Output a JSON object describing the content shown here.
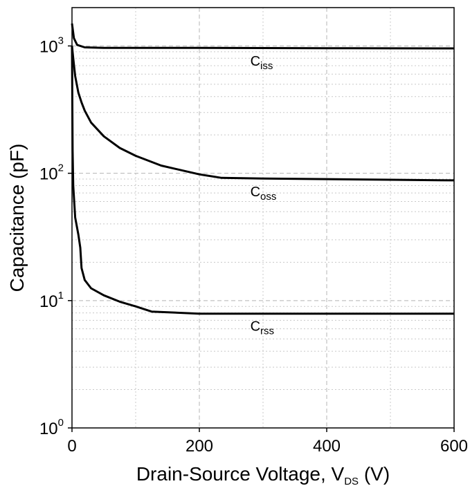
{
  "chart_data": {
    "type": "line",
    "xlabel": {
      "main": "Drain-Source Voltage, V",
      "sub": "DS",
      "unit": " (V)"
    },
    "ylabel": "Capacitance (pF)",
    "x_range": [
      0,
      600
    ],
    "y_range": [
      1,
      2000
    ],
    "y_scale": "log",
    "grid": true,
    "x_ticks": [
      {
        "value": 0,
        "label": "0"
      },
      {
        "value": 200,
        "label": "200"
      },
      {
        "value": 400,
        "label": "400"
      },
      {
        "value": 600,
        "label": "600"
      }
    ],
    "y_ticks": [
      {
        "value": 1,
        "base": "10",
        "exp": "0"
      },
      {
        "value": 10,
        "base": "10",
        "exp": "1"
      },
      {
        "value": 100,
        "base": "10",
        "exp": "2"
      },
      {
        "value": 1000,
        "base": "10",
        "exp": "3"
      }
    ],
    "series": [
      {
        "label": {
          "main": "C",
          "sub": "iss",
          "x": 280,
          "y": 700
        },
        "points": [
          [
            0,
            1500
          ],
          [
            3,
            1150
          ],
          [
            8,
            1020
          ],
          [
            20,
            975
          ],
          [
            50,
            965
          ],
          [
            100,
            965
          ],
          [
            200,
            965
          ],
          [
            300,
            962
          ],
          [
            400,
            960
          ],
          [
            500,
            958
          ],
          [
            600,
            957
          ]
        ]
      },
      {
        "label": {
          "main": "C",
          "sub": "oss",
          "x": 280,
          "y": 66
        },
        "points": [
          [
            0,
            1000
          ],
          [
            2,
            800
          ],
          [
            5,
            580
          ],
          [
            10,
            430
          ],
          [
            15,
            360
          ],
          [
            20,
            310
          ],
          [
            30,
            250
          ],
          [
            50,
            195
          ],
          [
            75,
            158
          ],
          [
            100,
            137
          ],
          [
            140,
            115
          ],
          [
            200,
            98
          ],
          [
            235,
            92
          ],
          [
            300,
            91
          ],
          [
            400,
            90
          ],
          [
            500,
            89
          ],
          [
            600,
            88
          ]
        ]
      },
      {
        "label": {
          "main": "C",
          "sub": "rss",
          "x": 280,
          "y": 5.8
        },
        "points": [
          [
            0,
            1000
          ],
          [
            1,
            150
          ],
          [
            2,
            80
          ],
          [
            5,
            45
          ],
          [
            10,
            33
          ],
          [
            13,
            26
          ],
          [
            15,
            18
          ],
          [
            20,
            14.5
          ],
          [
            30,
            12.5
          ],
          [
            50,
            11
          ],
          [
            75,
            9.8
          ],
          [
            100,
            9
          ],
          [
            125,
            8.2
          ],
          [
            200,
            7.9
          ],
          [
            300,
            7.9
          ],
          [
            400,
            7.9
          ],
          [
            500,
            7.9
          ],
          [
            600,
            7.9
          ]
        ]
      }
    ]
  }
}
